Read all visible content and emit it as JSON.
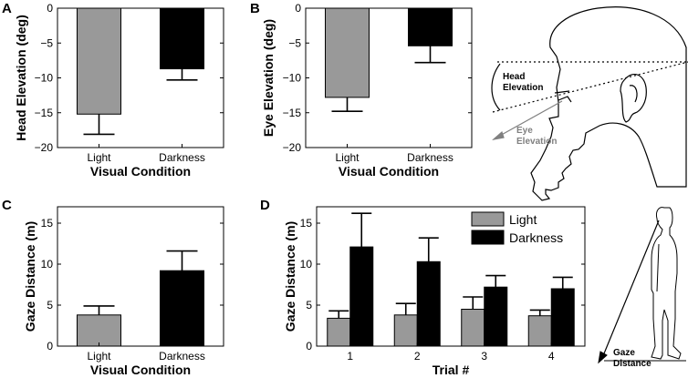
{
  "colors": {
    "light": "#999999",
    "darkness": "#000000",
    "eye_label": "#808080"
  },
  "panels": {
    "A": "A",
    "B": "B",
    "C": "C",
    "D": "D"
  },
  "illustrations": {
    "head": {
      "head_label": [
        "Head",
        "Elevation"
      ],
      "eye_label": [
        "Eye",
        "Elevation"
      ]
    },
    "body": {
      "gaze_label": [
        "Gaze",
        "Distance"
      ]
    }
  },
  "chart_data": [
    {
      "panel": "A",
      "type": "bar",
      "categories": [
        "Light",
        "Darkness"
      ],
      "values": [
        -15.2,
        -8.7
      ],
      "errors": [
        2.9,
        1.6
      ],
      "ylabel": "Head Elevation (deg)",
      "xlabel": "Visual Condition",
      "ylim": [
        -20,
        0
      ],
      "yticks": [
        0,
        -5,
        -10,
        -15,
        -20
      ],
      "ytick_labels": [
        "0",
        "−5",
        "−10",
        "−15",
        "−20"
      ]
    },
    {
      "panel": "B",
      "type": "bar",
      "categories": [
        "Light",
        "Darkness"
      ],
      "values": [
        -12.8,
        -5.4
      ],
      "errors": [
        2.0,
        2.4
      ],
      "ylabel": "Eye Elevation (deg)",
      "xlabel": "Visual Condition",
      "ylim": [
        -20,
        0
      ],
      "yticks": [
        0,
        -5,
        -10,
        -15,
        -20
      ],
      "ytick_labels": [
        "0",
        "−5",
        "−10",
        "−15",
        "−20"
      ]
    },
    {
      "panel": "C",
      "type": "bar",
      "categories": [
        "Light",
        "Darkness"
      ],
      "values": [
        3.8,
        9.2
      ],
      "errors": [
        1.1,
        2.4
      ],
      "ylabel": "Gaze Distance (m)",
      "xlabel": "Visual Condition",
      "ylim": [
        0,
        17
      ],
      "yticks": [
        0,
        5,
        10,
        15
      ],
      "ytick_labels": [
        "0",
        "5",
        "10",
        "15"
      ]
    },
    {
      "panel": "D",
      "type": "bar",
      "categories": [
        "1",
        "2",
        "3",
        "4"
      ],
      "series": [
        {
          "name": "Light",
          "values": [
            3.4,
            3.8,
            4.5,
            3.7
          ],
          "errors": [
            0.9,
            1.4,
            1.5,
            0.7
          ]
        },
        {
          "name": "Darkness",
          "values": [
            12.1,
            10.3,
            7.2,
            7.0
          ],
          "errors": [
            4.1,
            2.9,
            1.4,
            1.4
          ]
        }
      ],
      "ylabel": "Gaze Distance (m)",
      "xlabel": "Trial #",
      "ylim": [
        0,
        17
      ],
      "yticks": [
        0,
        5,
        10,
        15
      ],
      "ytick_labels": [
        "0",
        "5",
        "10",
        "15"
      ],
      "legend": "top-right"
    }
  ]
}
